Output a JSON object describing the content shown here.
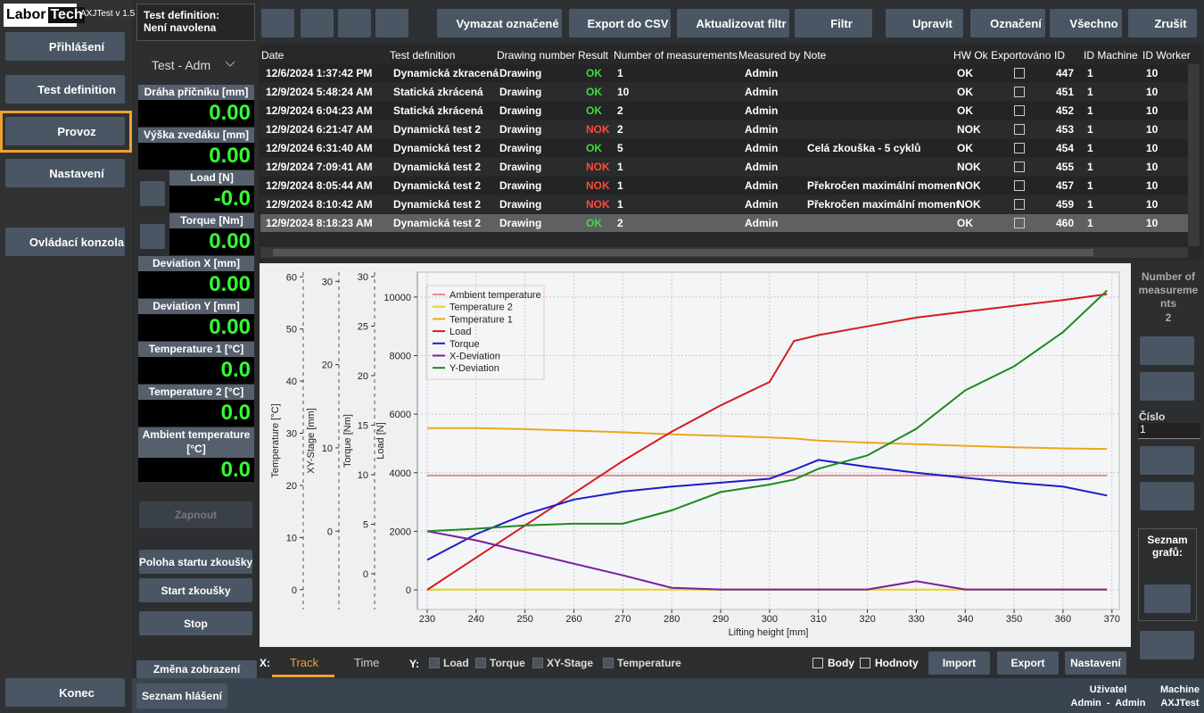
{
  "app": {
    "logo_left": "Labor",
    "logo_right": "Tech",
    "version": "AXJTest v 1.5"
  },
  "nav": [
    "Přihlášení",
    "Test definition",
    "Provoz",
    "Nastavení",
    "Ovládací konzola",
    "Konec"
  ],
  "test_definition": {
    "label": "Test definition:",
    "value": "Není navolena"
  },
  "user_select": "Test - Adm",
  "readouts": [
    {
      "label": "Dráha příčníku [mm]",
      "value": "0.00"
    },
    {
      "label": "Výška zvedáku [mm]",
      "value": "0.00"
    },
    {
      "label": "Load [N]",
      "value": "-0.0"
    },
    {
      "label": "Torque [Nm]",
      "value": "0.00"
    },
    {
      "label": "Deviation X [mm]",
      "value": "0.00"
    },
    {
      "label": "Deviation Y [mm]",
      "value": "0.00"
    },
    {
      "label": "Temperature 1 [°C]",
      "value": "0.0"
    },
    {
      "label": "Temperature 2 [°C]",
      "value": "0.0"
    },
    {
      "label": "Ambient temperature [°C]",
      "value": "0.0"
    }
  ],
  "actions": [
    "Zapnout",
    "Poloha startu zkoušky",
    "Start zkoušky",
    "Stop",
    "Změna zobrazení",
    "Seznam hlášení"
  ],
  "toolbar": [
    "Vymazat označené",
    "Export do CSV",
    "Aktualizovat filtr",
    "Filtr",
    "Upravit",
    "Označení",
    "Všechno",
    "Zrušit"
  ],
  "table": {
    "columns": [
      "Date",
      "Test definition",
      "Drawing number",
      "Result",
      "Number of measurements",
      "Measured by",
      "Note",
      "HW Ok",
      "Exportováno",
      "ID",
      "ID Machine",
      "ID Worker"
    ],
    "result_colors": {
      "OK": "#3ddc3d",
      "NOK": "#ff4a3a"
    },
    "selected_row": 8,
    "rows": [
      [
        "12/6/2024 1:37:42 PM",
        "Dynamická zkracená",
        "Drawing",
        "OK",
        1,
        "Admin",
        null,
        "OK",
        false,
        447,
        1,
        10
      ],
      [
        "12/9/2024 5:48:24 AM",
        "Statická zkrácená",
        "Drawing",
        "OK",
        10,
        "Admin",
        null,
        "OK",
        false,
        451,
        1,
        10
      ],
      [
        "12/9/2024 6:04:23 AM",
        "Statická zkrácená",
        "Drawing",
        "OK",
        2,
        "Admin",
        null,
        "OK",
        false,
        452,
        1,
        10
      ],
      [
        "12/9/2024 6:21:47 AM",
        "Dynamická test 2",
        "Drawing",
        "NOK",
        2,
        "Admin",
        null,
        "NOK",
        false,
        453,
        1,
        10
      ],
      [
        "12/9/2024 6:31:40 AM",
        "Dynamická test 2",
        "Drawing",
        "OK",
        5,
        "Admin",
        "Celá zkouška - 5 cyklů",
        "OK",
        false,
        454,
        1,
        10
      ],
      [
        "12/9/2024 7:09:41 AM",
        "Dynamická test 2",
        "Drawing",
        "NOK",
        1,
        "Admin",
        null,
        "NOK",
        false,
        455,
        1,
        10
      ],
      [
        "12/9/2024 8:05:44 AM",
        "Dynamická test 2",
        "Drawing",
        "NOK",
        1,
        "Admin",
        "Překročen maximální moment",
        "NOK",
        false,
        457,
        1,
        10
      ],
      [
        "12/9/2024 8:10:42 AM",
        "Dynamická test 2",
        "Drawing",
        "NOK",
        1,
        "Admin",
        "Překročen maximální moment",
        "NOK",
        false,
        459,
        1,
        10
      ],
      [
        "12/9/2024 8:18:23 AM",
        "Dynamická test 2",
        "Drawing",
        "OK",
        2,
        "Admin",
        null,
        "OK",
        false,
        460,
        1,
        10
      ]
    ]
  },
  "right_panel": {
    "count_label": "Number of measurements",
    "count_value": "2",
    "number_label": "Číslo",
    "number_value": "1",
    "graphs_label": "Seznam grafů:"
  },
  "bottom": {
    "x_label": "X:",
    "x_tabs": [
      "Track",
      "Time"
    ],
    "y_label": "Y:",
    "y_checks": [
      "Load",
      "Torque",
      "XY-Stage",
      "Temperature"
    ],
    "checks": [
      "Body",
      "Hodnoty"
    ],
    "buttons": [
      "Import",
      "Export",
      "Nastavení"
    ]
  },
  "status": {
    "user_label": "Uživatel",
    "user": "Admin  -  Admin",
    "machine_label": "Machine",
    "machine": "AXJTest"
  },
  "chart_data": {
    "type": "line",
    "xlabel": "Lifting height [mm]",
    "x": [
      230,
      240,
      250,
      260,
      270,
      280,
      290,
      300,
      305,
      310,
      320,
      330,
      340,
      350,
      360,
      369
    ],
    "xlim": [
      228,
      371.5
    ],
    "xticks": [
      230,
      240,
      250,
      260,
      270,
      280,
      290,
      300,
      310,
      320,
      330,
      340,
      350,
      360,
      370
    ],
    "ylabel": "Load [N]",
    "ylim": [
      -670,
      10850
    ],
    "yticks": [
      0,
      2000,
      4000,
      6000,
      8000,
      10000
    ],
    "y2label": "Torque [Nm]",
    "y2lim": [
      -3.6,
      30.45
    ],
    "y2ticks": [
      0,
      5,
      10,
      15,
      20,
      25,
      30
    ],
    "y3label": "XY-Stage [mm]",
    "y3lim": [
      -9.4,
      31.1
    ],
    "y3ticks": [
      0,
      10,
      20,
      30
    ],
    "y4label": "Temperature [°C]",
    "y4lim": [
      -3.8,
      60.9
    ],
    "y4ticks": [
      0,
      10,
      20,
      30,
      40,
      50,
      60
    ],
    "grid": true,
    "legend": "upper left",
    "series": [
      {
        "name": "Ambient temperature",
        "color": "#e58b8b",
        "axis": "y4",
        "values": [
          21.9,
          21.9,
          21.9,
          21.9,
          21.9,
          21.9,
          21.9,
          21.9,
          21.9,
          21.9,
          21.9,
          21.9,
          21.9,
          21.9,
          21.9,
          21.9
        ]
      },
      {
        "name": "Temperature 2",
        "color": "#e8d21e",
        "axis": "y4",
        "values": [
          0,
          0,
          0,
          0,
          0,
          0,
          0,
          0,
          0,
          0,
          0,
          0,
          0,
          0,
          0,
          0
        ]
      },
      {
        "name": "Temperature 1",
        "color": "#e9a81c",
        "axis": "y4",
        "values": [
          31,
          31,
          30.8,
          30.5,
          30.2,
          29.8,
          29.5,
          29.2,
          29,
          28.6,
          28.2,
          27.9,
          27.6,
          27.3,
          27.1,
          27
        ]
      },
      {
        "name": "Load",
        "color": "#d41c1c",
        "values": [
          0,
          1100,
          2200,
          3300,
          4400,
          5400,
          6300,
          7100,
          8500,
          8700,
          9000,
          9300,
          9500,
          9700,
          9900,
          10100
        ]
      },
      {
        "name": "Torque",
        "color": "#1c1cc4",
        "axis": "y2",
        "values": [
          1.4,
          4,
          6,
          7.5,
          8.3,
          8.8,
          9.2,
          9.6,
          10.5,
          11.5,
          10.8,
          10.2,
          9.7,
          9.2,
          8.8,
          7.9
        ]
      },
      {
        "name": "X-Deviation",
        "color": "#7b1d9b",
        "axis": "y3",
        "values": [
          0,
          -1.1,
          -2.5,
          -3.9,
          -5.3,
          -6.8,
          -7,
          -7,
          -7,
          -7,
          -7,
          -6,
          -7,
          -7,
          -7,
          -7
        ]
      },
      {
        "name": "Y-Deviation",
        "color": "#1f8a1f",
        "axis": "y3",
        "values": [
          0,
          0.3,
          0.7,
          0.9,
          0.9,
          2.5,
          4.7,
          5.6,
          6.2,
          7.5,
          9.1,
          12.3,
          16.9,
          19.8,
          23.9,
          28.9
        ]
      }
    ]
  }
}
